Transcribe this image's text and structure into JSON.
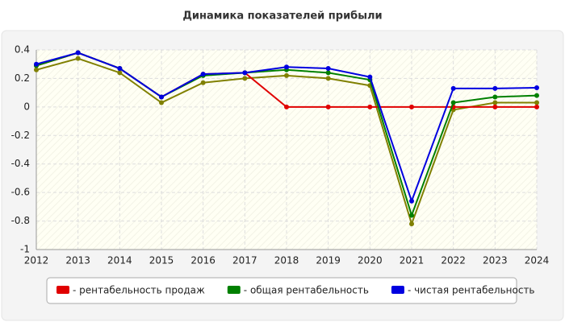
{
  "chart_data": {
    "type": "line",
    "title": "Динамика показателей прибыли",
    "x": [
      2012,
      2013,
      2014,
      2015,
      2016,
      2017,
      2018,
      2019,
      2020,
      2021,
      2022,
      2023,
      2024
    ],
    "xlim": [
      2012,
      2024
    ],
    "xticks": [
      2012,
      2013,
      2014,
      2015,
      2016,
      2017,
      2018,
      2019,
      2020,
      2021,
      2022,
      2023,
      2024
    ],
    "ylim": [
      -1,
      0.4
    ],
    "yticks": [
      -1,
      -0.8,
      -0.6,
      -0.4,
      -0.2,
      0,
      0.2,
      0.4
    ],
    "grid": true,
    "legend": "bottom",
    "series": [
      {
        "color": "#808000",
        "values": [
          0.26,
          0.34,
          0.24,
          0.03,
          0.17,
          0.2,
          0.22,
          0.2,
          0.15,
          -0.82,
          -0.02,
          0.03,
          0.03
        ]
      },
      {
        "name": "- рентабельность продаж",
        "color": "#e00000",
        "values": [
          0.29,
          0.38,
          0.27,
          0.07,
          0.23,
          0.24,
          0,
          0,
          0,
          0,
          0,
          0,
          0
        ]
      },
      {
        "name": "- общая рентабельность",
        "color": "#008000",
        "values": [
          0.29,
          0.38,
          0.27,
          0.07,
          0.22,
          0.24,
          0.26,
          0.24,
          0.19,
          -0.76,
          0.03,
          0.07,
          0.08
        ]
      },
      {
        "name": "- чистая рентабельность",
        "color": "#0000e0",
        "values": [
          0.3,
          0.38,
          0.27,
          0.07,
          0.23,
          0.24,
          0.28,
          0.27,
          0.21,
          -0.66,
          0.13,
          0.13,
          0.135
        ]
      }
    ]
  }
}
